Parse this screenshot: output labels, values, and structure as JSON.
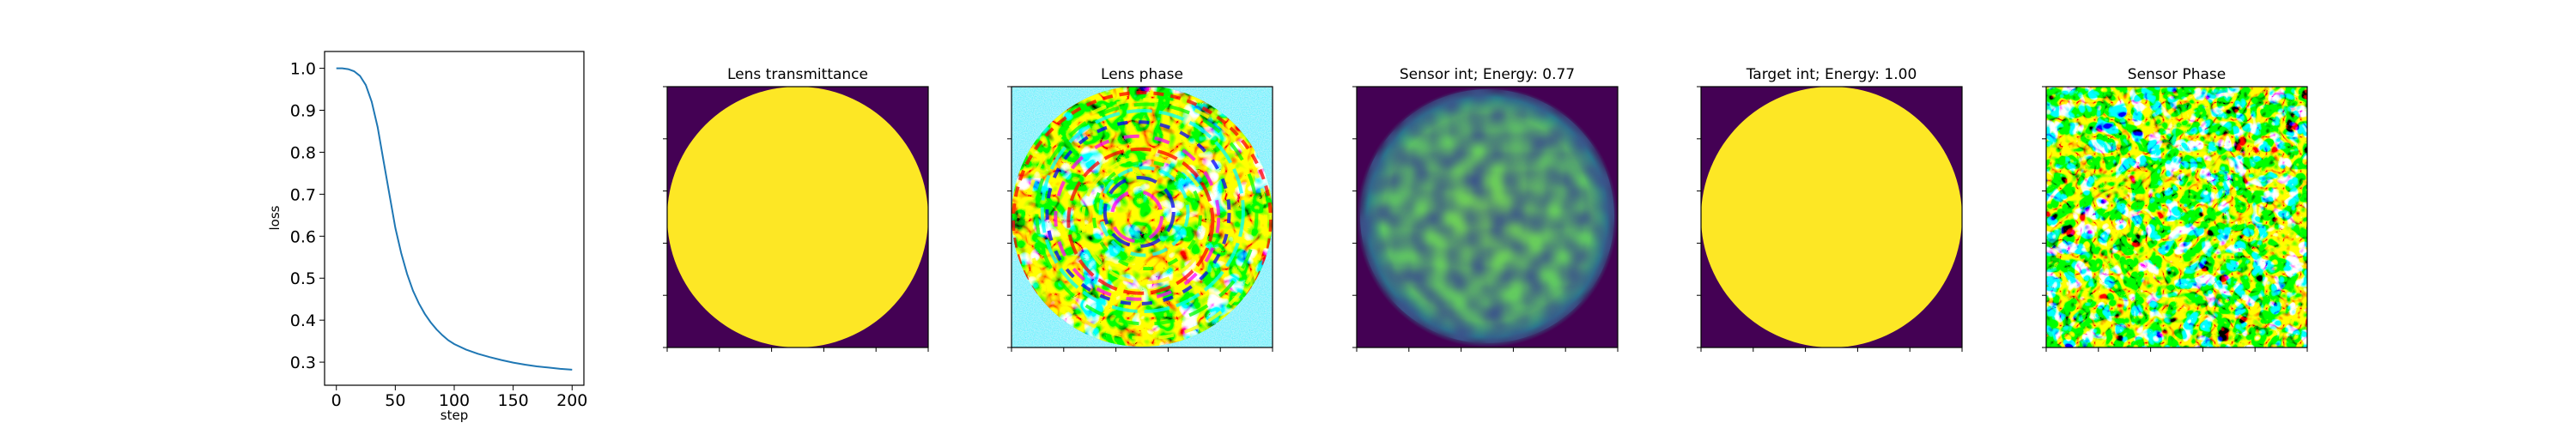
{
  "chart_data": [
    {
      "type": "line",
      "title": "",
      "xlabel": "step",
      "ylabel": "loss",
      "xlim": [
        -10,
        210
      ],
      "ylim": [
        0.245,
        1.04
      ],
      "xticks": [
        0,
        50,
        100,
        150,
        200
      ],
      "xtick_labels": [
        "0",
        "50",
        "100",
        "150",
        "200"
      ],
      "yticks": [
        0.3,
        0.4,
        0.5,
        0.6,
        0.7,
        0.8,
        0.9,
        1.0
      ],
      "ytick_labels": [
        "0.3",
        "0.4",
        "0.5",
        "0.6",
        "0.7",
        "0.8",
        "0.9",
        "1.0"
      ],
      "line_color": "#1f77b4",
      "series": [
        {
          "x": [
            0,
            5,
            10,
            15,
            20,
            25,
            30,
            35,
            40,
            45,
            50,
            55,
            60,
            65,
            70,
            75,
            80,
            85,
            90,
            95,
            100,
            110,
            120,
            130,
            140,
            150,
            160,
            170,
            180,
            190,
            200
          ],
          "values": [
            1.0,
            1.0,
            0.998,
            0.993,
            0.982,
            0.96,
            0.92,
            0.86,
            0.78,
            0.7,
            0.62,
            0.56,
            0.51,
            0.47,
            0.44,
            0.415,
            0.395,
            0.378,
            0.364,
            0.352,
            0.343,
            0.33,
            0.32,
            0.312,
            0.305,
            0.299,
            0.294,
            0.29,
            0.287,
            0.284,
            0.282
          ]
        }
      ]
    },
    {
      "type": "heatmap",
      "title": "Lens transmittance",
      "pattern": "disk",
      "colormap": "viridis",
      "background": "#440154",
      "fill": "#fde725"
    },
    {
      "type": "heatmap",
      "title": "Lens phase",
      "pattern": "phase-rings-in-disk",
      "colormap": "hsv",
      "outside": "noise-cyan"
    },
    {
      "type": "heatmap",
      "title": "Sensor int; Energy: 0.77",
      "pattern": "speckle-disk",
      "colormap": "viridis"
    },
    {
      "type": "heatmap",
      "title": "Target int; Energy: 1.00",
      "pattern": "disk",
      "colormap": "viridis",
      "background": "#440154",
      "fill": "#fde725"
    },
    {
      "type": "heatmap",
      "title": "Sensor Phase",
      "pattern": "random-phase-field",
      "colormap": "hsv"
    }
  ]
}
